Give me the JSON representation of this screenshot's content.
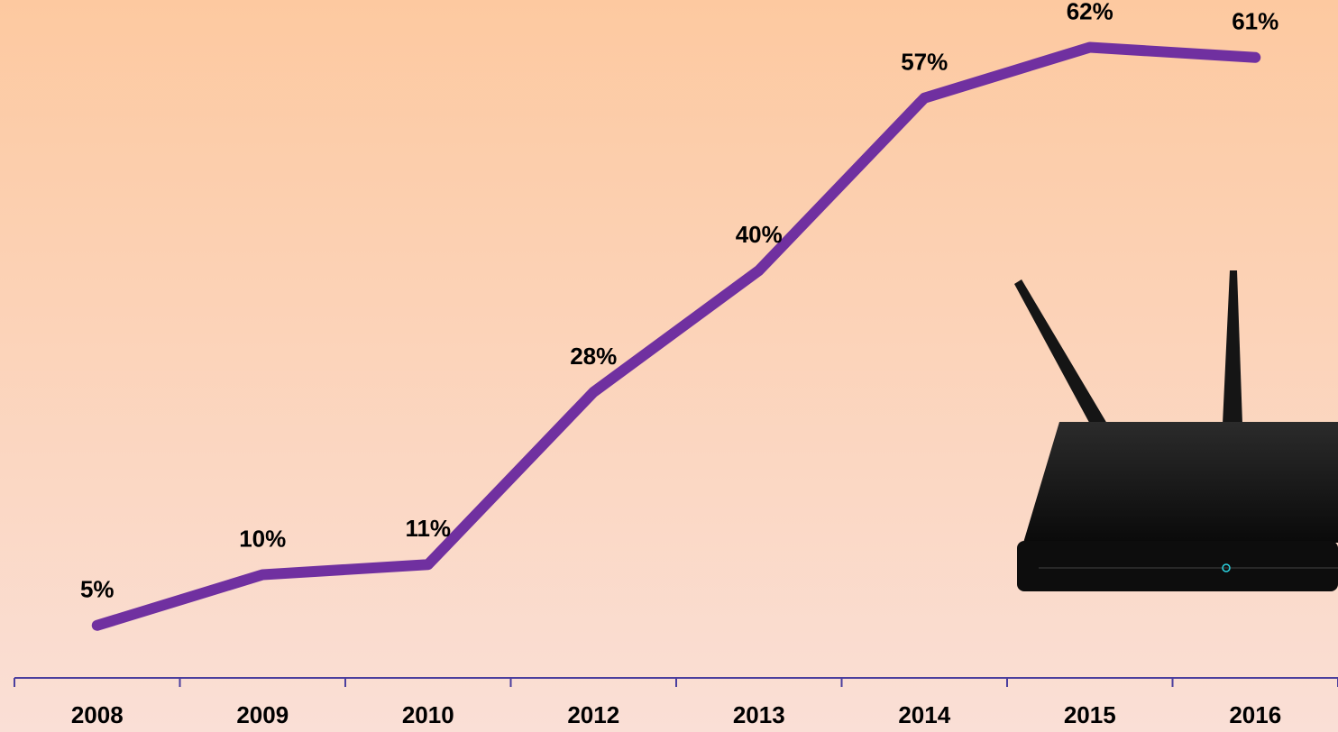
{
  "chart_data": {
    "type": "line",
    "categories": [
      "2008",
      "2009",
      "2010",
      "2012",
      "2013",
      "2014",
      "2015",
      "2016"
    ],
    "series": [
      {
        "color": "#7030a0",
        "values": [
          5,
          10,
          11,
          28,
          40,
          57,
          62,
          61
        ],
        "value_labels": [
          "5%",
          "10%",
          "11%",
          "28%",
          "40%",
          "57%",
          "62%",
          "61%"
        ]
      }
    ]
  }
}
